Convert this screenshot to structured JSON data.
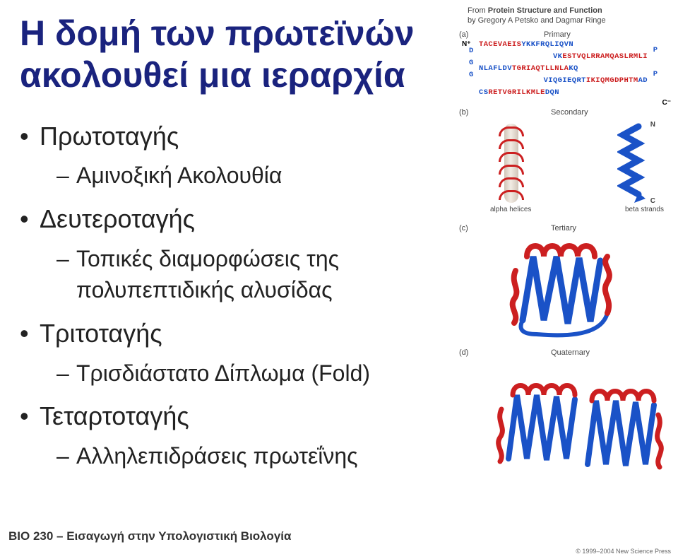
{
  "title": "Η δομή των πρωτεϊνών ακολουθεί μια ιεραρχία",
  "bullets": {
    "p1": "Πρωτοταγής",
    "p1_1": "Αμινοξική Ακολουθία",
    "p2": "Δευτεροταγής",
    "p2_1": "Τοπικές διαμορφώσεις της πολυπεπτιδικής αλυσίδας",
    "p3": "Τριτοταγής",
    "p3_1": "Τρισδιάστατο Δίπλωμα (Fold)",
    "p4": "Τεταρτοταγής",
    "p4_1": "Αλληλεπιδράσεις πρωτεΐνης"
  },
  "footer": "BIO 230 – Εισαγωγή στην Υπολογιστική Βιολογία",
  "source_line1": "From Protein Structure and Function",
  "source_bold": "Protein Structure and Function",
  "source_line2": "by Gregory A Petsko and Dagmar Ringe",
  "panels": {
    "a": "(a)",
    "a_title": "Primary",
    "b": "(b)",
    "b_title": "Secondary",
    "c": "(c)",
    "c_title": "Tertiary",
    "d": "(d)",
    "d_title": "Quaternary"
  },
  "primary_seq": [
    {
      "pre": "",
      "red": "TACEVAEIS",
      "post": "YKKFRQLIQVN",
      "rlink": "P"
    },
    {
      "llink": "D",
      "pre": "VK",
      "red": "ESTVQLRRAMQASLRMLI",
      "post": ""
    },
    {
      "llink": "G",
      "pre": "NLAFLDV",
      "red": "TGRIAQTLLNLA",
      "post": "KQ",
      "rlink": "P"
    },
    {
      "llink": "G",
      "pre": "VIQGIEQRT",
      "red": "IKIQMGDPHTM",
      "post": "AD"
    },
    {
      "pre": "CS",
      "red": "RETVGRILKMLE",
      "post": "DQN"
    }
  ],
  "colors": {
    "red": "#cc1f20",
    "blue": "#1a52c7",
    "darkblue": "#1b3a8a",
    "bg": "#ffffff",
    "text": "#222",
    "titlecolor": "#1a237e",
    "neutral": "#444",
    "helix_body": "#f2ece4"
  },
  "sub": {
    "alpha": "alpha helices",
    "beta": "beta strands",
    "n": "N",
    "c": "C",
    "nterm": "N⁺",
    "cterm": "C⁻"
  },
  "copyright": "© 1999–2004 New Science Press"
}
